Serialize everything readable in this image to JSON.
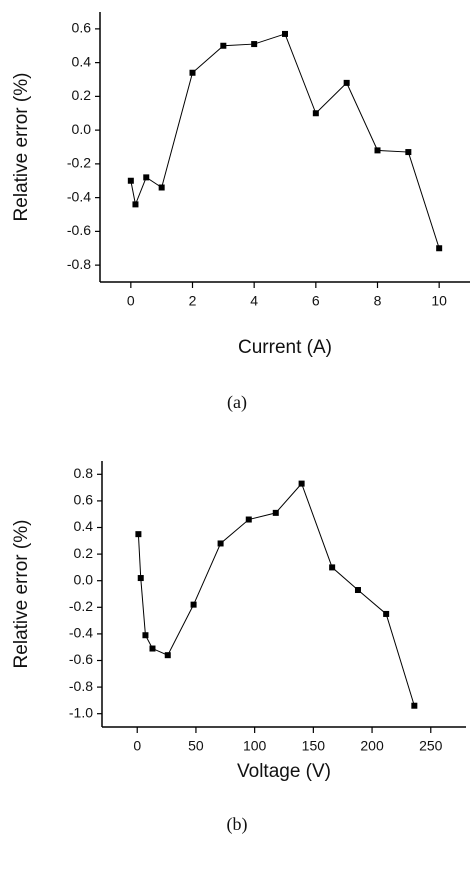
{
  "chart_data": [
    {
      "type": "line",
      "x_label": "Current (A)",
      "y_label": "Relative error (%)",
      "caption": "(a)",
      "x": [
        0,
        0.15,
        0.5,
        1,
        2,
        3,
        4,
        5,
        6,
        7,
        8,
        9,
        10
      ],
      "values": [
        -0.3,
        -0.44,
        -0.28,
        -0.34,
        0.34,
        0.5,
        0.51,
        0.57,
        0.1,
        0.28,
        -0.12,
        -0.13,
        -0.7
      ],
      "color": "#000000",
      "xlim": [
        -1,
        11
      ],
      "xticks": [
        0,
        2,
        4,
        6,
        8,
        10
      ],
      "ylim": [
        -0.9,
        0.7
      ],
      "yticks": [
        0.6,
        0.4,
        0.2,
        {
          "value": 0,
          "label": "0.0"
        },
        -0.2,
        -0.4,
        -0.6,
        -0.8
      ]
    },
    {
      "type": "line",
      "x_label": "Voltage (V)",
      "y_label": "Relative error (%)",
      "caption": "(b)",
      "x": [
        1,
        3,
        7,
        13,
        26,
        48,
        71,
        95,
        118,
        140,
        166,
        188,
        212,
        236
      ],
      "values": [
        0.35,
        0.02,
        -0.41,
        -0.51,
        -0.56,
        -0.18,
        0.28,
        0.46,
        0.51,
        0.73,
        0.1,
        -0.07,
        -0.25,
        -0.94
      ],
      "color": "#000000",
      "xlim": [
        -30,
        280
      ],
      "xticks": [
        0,
        50,
        100,
        150,
        200,
        250
      ],
      "ylim": [
        -1.1,
        0.9
      ],
      "yticks": [
        0.8,
        0.6,
        0.4,
        0.2,
        {
          "value": 0,
          "label": "0.0"
        },
        -0.2,
        -0.4,
        -0.6,
        -0.8,
        {
          "value": -1,
          "label": "-1.0"
        }
      ]
    }
  ]
}
